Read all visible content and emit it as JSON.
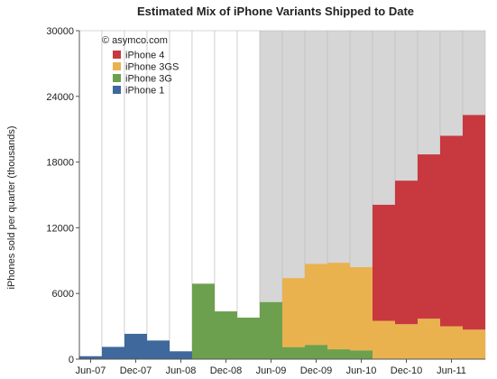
{
  "chart_data": {
    "type": "bar",
    "title": "Estimated Mix of iPhone Variants Shipped to Date",
    "ylabel": "iPhones sold per quarter (thousands)",
    "xlabel": "",
    "ylim": [
      0,
      30000
    ],
    "yticks": [
      "0",
      "6000",
      "12000",
      "18000",
      "24000",
      "30000"
    ],
    "xtick_labels": [
      "Jun-07",
      "Dec-07",
      "Jun-08",
      "Dec-08",
      "Jun-09",
      "Dec-09",
      "Jun-10",
      "Dec-10",
      "Jun-11"
    ],
    "categories": [
      "Jun-07",
      "Sep-07",
      "Dec-07",
      "Mar-08",
      "Jun-08",
      "Sep-08",
      "Dec-08",
      "Mar-09",
      "Jun-09",
      "Sep-09",
      "Dec-09",
      "Mar-10",
      "Jun-10",
      "Sep-10",
      "Dec-10",
      "Mar-11",
      "Jun-11",
      "Sep-11"
    ],
    "background_bar_cap": 30000,
    "background_gray_from_index": 8,
    "source": "© asymco.com",
    "legend_position": "top-left",
    "colors": {
      "iPhone 4": "#c8383f",
      "iPhone 3GS": "#e9b24f",
      "iPhone 3G": "#6ca04e",
      "iPhone 1": "#3f689c",
      "background_gray": "#d6d6d6",
      "background_white": "#ffffff"
    },
    "series": [
      {
        "name": "iPhone 1",
        "values": [
          270,
          1119,
          2315,
          1703,
          717,
          0,
          0,
          0,
          0,
          0,
          0,
          0,
          0,
          0,
          0,
          0,
          0,
          0
        ]
      },
      {
        "name": "iPhone 3G",
        "values": [
          0,
          0,
          0,
          0,
          0,
          6892,
          4363,
          3793,
          5208,
          1100,
          1300,
          900,
          800,
          0,
          0,
          0,
          0,
          0
        ]
      },
      {
        "name": "iPhone 3GS",
        "values": [
          0,
          0,
          0,
          0,
          0,
          0,
          0,
          0,
          0,
          6300,
          7400,
          7900,
          7600,
          3500,
          3200,
          3700,
          3000,
          2700
        ]
      },
      {
        "name": "iPhone 4",
        "values": [
          0,
          0,
          0,
          0,
          0,
          0,
          0,
          0,
          0,
          0,
          0,
          0,
          0,
          10600,
          13100,
          15000,
          17400,
          19600
        ]
      }
    ],
    "legend_order": [
      "iPhone 4",
      "iPhone 3GS",
      "iPhone 3G",
      "iPhone 1"
    ]
  }
}
